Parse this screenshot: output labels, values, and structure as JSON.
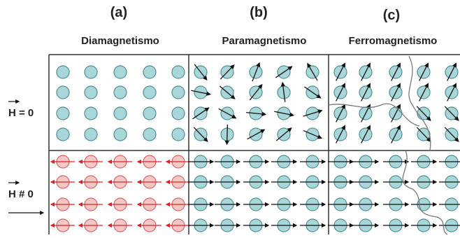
{
  "panels": [
    {
      "label": "(a)",
      "name": "Diamagnetismo"
    },
    {
      "label": "(b)",
      "name": "Paramagnetismo"
    },
    {
      "label": "(c)",
      "name": "Ferromagnetismo"
    }
  ],
  "rows": [
    "H = 0",
    "H # 0"
  ]
}
